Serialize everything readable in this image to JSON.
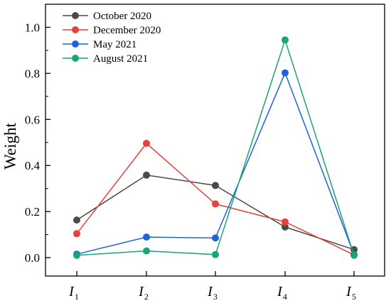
{
  "chart_data": {
    "type": "line",
    "ylabel": "Weight",
    "xlabel": "",
    "ylim": [
      -0.08,
      1.1
    ],
    "yticks": [
      "0.0",
      "0.2",
      "0.4",
      "0.6",
      "0.8",
      "1.0"
    ],
    "categories": [
      {
        "base": "I",
        "sub": "1"
      },
      {
        "base": "I",
        "sub": "2"
      },
      {
        "base": "I",
        "sub": "3"
      },
      {
        "base": "I",
        "sub": "4"
      },
      {
        "base": "I",
        "sub": "5"
      }
    ],
    "legend_position": "top-left",
    "series": [
      {
        "name": "October 2020",
        "color": "#4a4a4a",
        "values": [
          0.163,
          0.358,
          0.313,
          0.133,
          0.035
        ]
      },
      {
        "name": "December 2020",
        "color": "#e8413c",
        "values": [
          0.104,
          0.496,
          0.233,
          0.155,
          0.012
        ]
      },
      {
        "name": "May 2021",
        "color": "#1f63d6",
        "values": [
          0.015,
          0.089,
          0.085,
          0.802,
          0.013
        ]
      },
      {
        "name": "August 2021",
        "color": "#1aa571",
        "values": [
          0.01,
          0.029,
          0.013,
          0.945,
          0.01
        ]
      }
    ]
  }
}
